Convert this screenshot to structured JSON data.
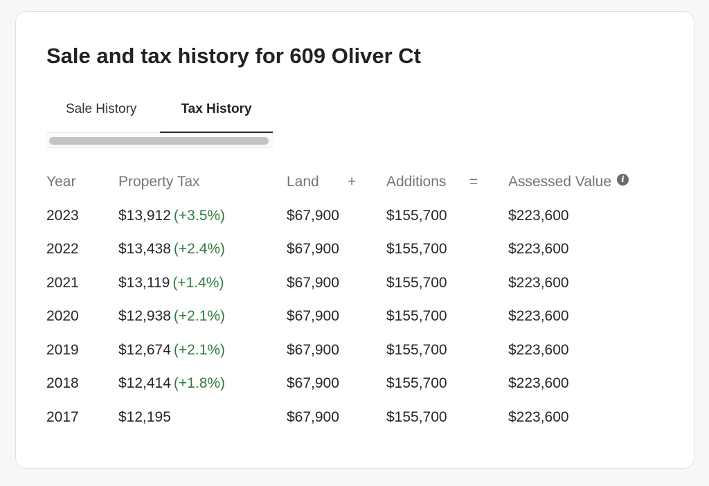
{
  "title": "Sale and tax history for 609 Oliver Ct",
  "tabs": [
    {
      "label": "Sale History",
      "active": false
    },
    {
      "label": "Tax History",
      "active": true
    }
  ],
  "table": {
    "headers": {
      "year": "Year",
      "property_tax": "Property Tax",
      "land": "Land",
      "plus": "+",
      "additions": "Additions",
      "equals": "=",
      "assessed_value": "Assessed Value",
      "info_icon": "info-icon"
    },
    "rows": [
      {
        "year": "2023",
        "tax": "$13,912",
        "change": "(+3.5%)",
        "land": "$67,900",
        "additions": "$155,700",
        "assessed": "$223,600"
      },
      {
        "year": "2022",
        "tax": "$13,438",
        "change": "(+2.4%)",
        "land": "$67,900",
        "additions": "$155,700",
        "assessed": "$223,600"
      },
      {
        "year": "2021",
        "tax": "$13,119",
        "change": "(+1.4%)",
        "land": "$67,900",
        "additions": "$155,700",
        "assessed": "$223,600"
      },
      {
        "year": "2020",
        "tax": "$12,938",
        "change": "(+2.1%)",
        "land": "$67,900",
        "additions": "$155,700",
        "assessed": "$223,600"
      },
      {
        "year": "2019",
        "tax": "$12,674",
        "change": "(+2.1%)",
        "land": "$67,900",
        "additions": "$155,700",
        "assessed": "$223,600"
      },
      {
        "year": "2018",
        "tax": "$12,414",
        "change": "(+1.8%)",
        "land": "$67,900",
        "additions": "$155,700",
        "assessed": "$223,600"
      },
      {
        "year": "2017",
        "tax": "$12,195",
        "change": "",
        "land": "$67,900",
        "additions": "$155,700",
        "assessed": "$223,600"
      }
    ]
  },
  "colors": {
    "change_positive": "#2f7d3f",
    "header_text": "#757575",
    "active_tab_underline": "#2a2a2a"
  }
}
